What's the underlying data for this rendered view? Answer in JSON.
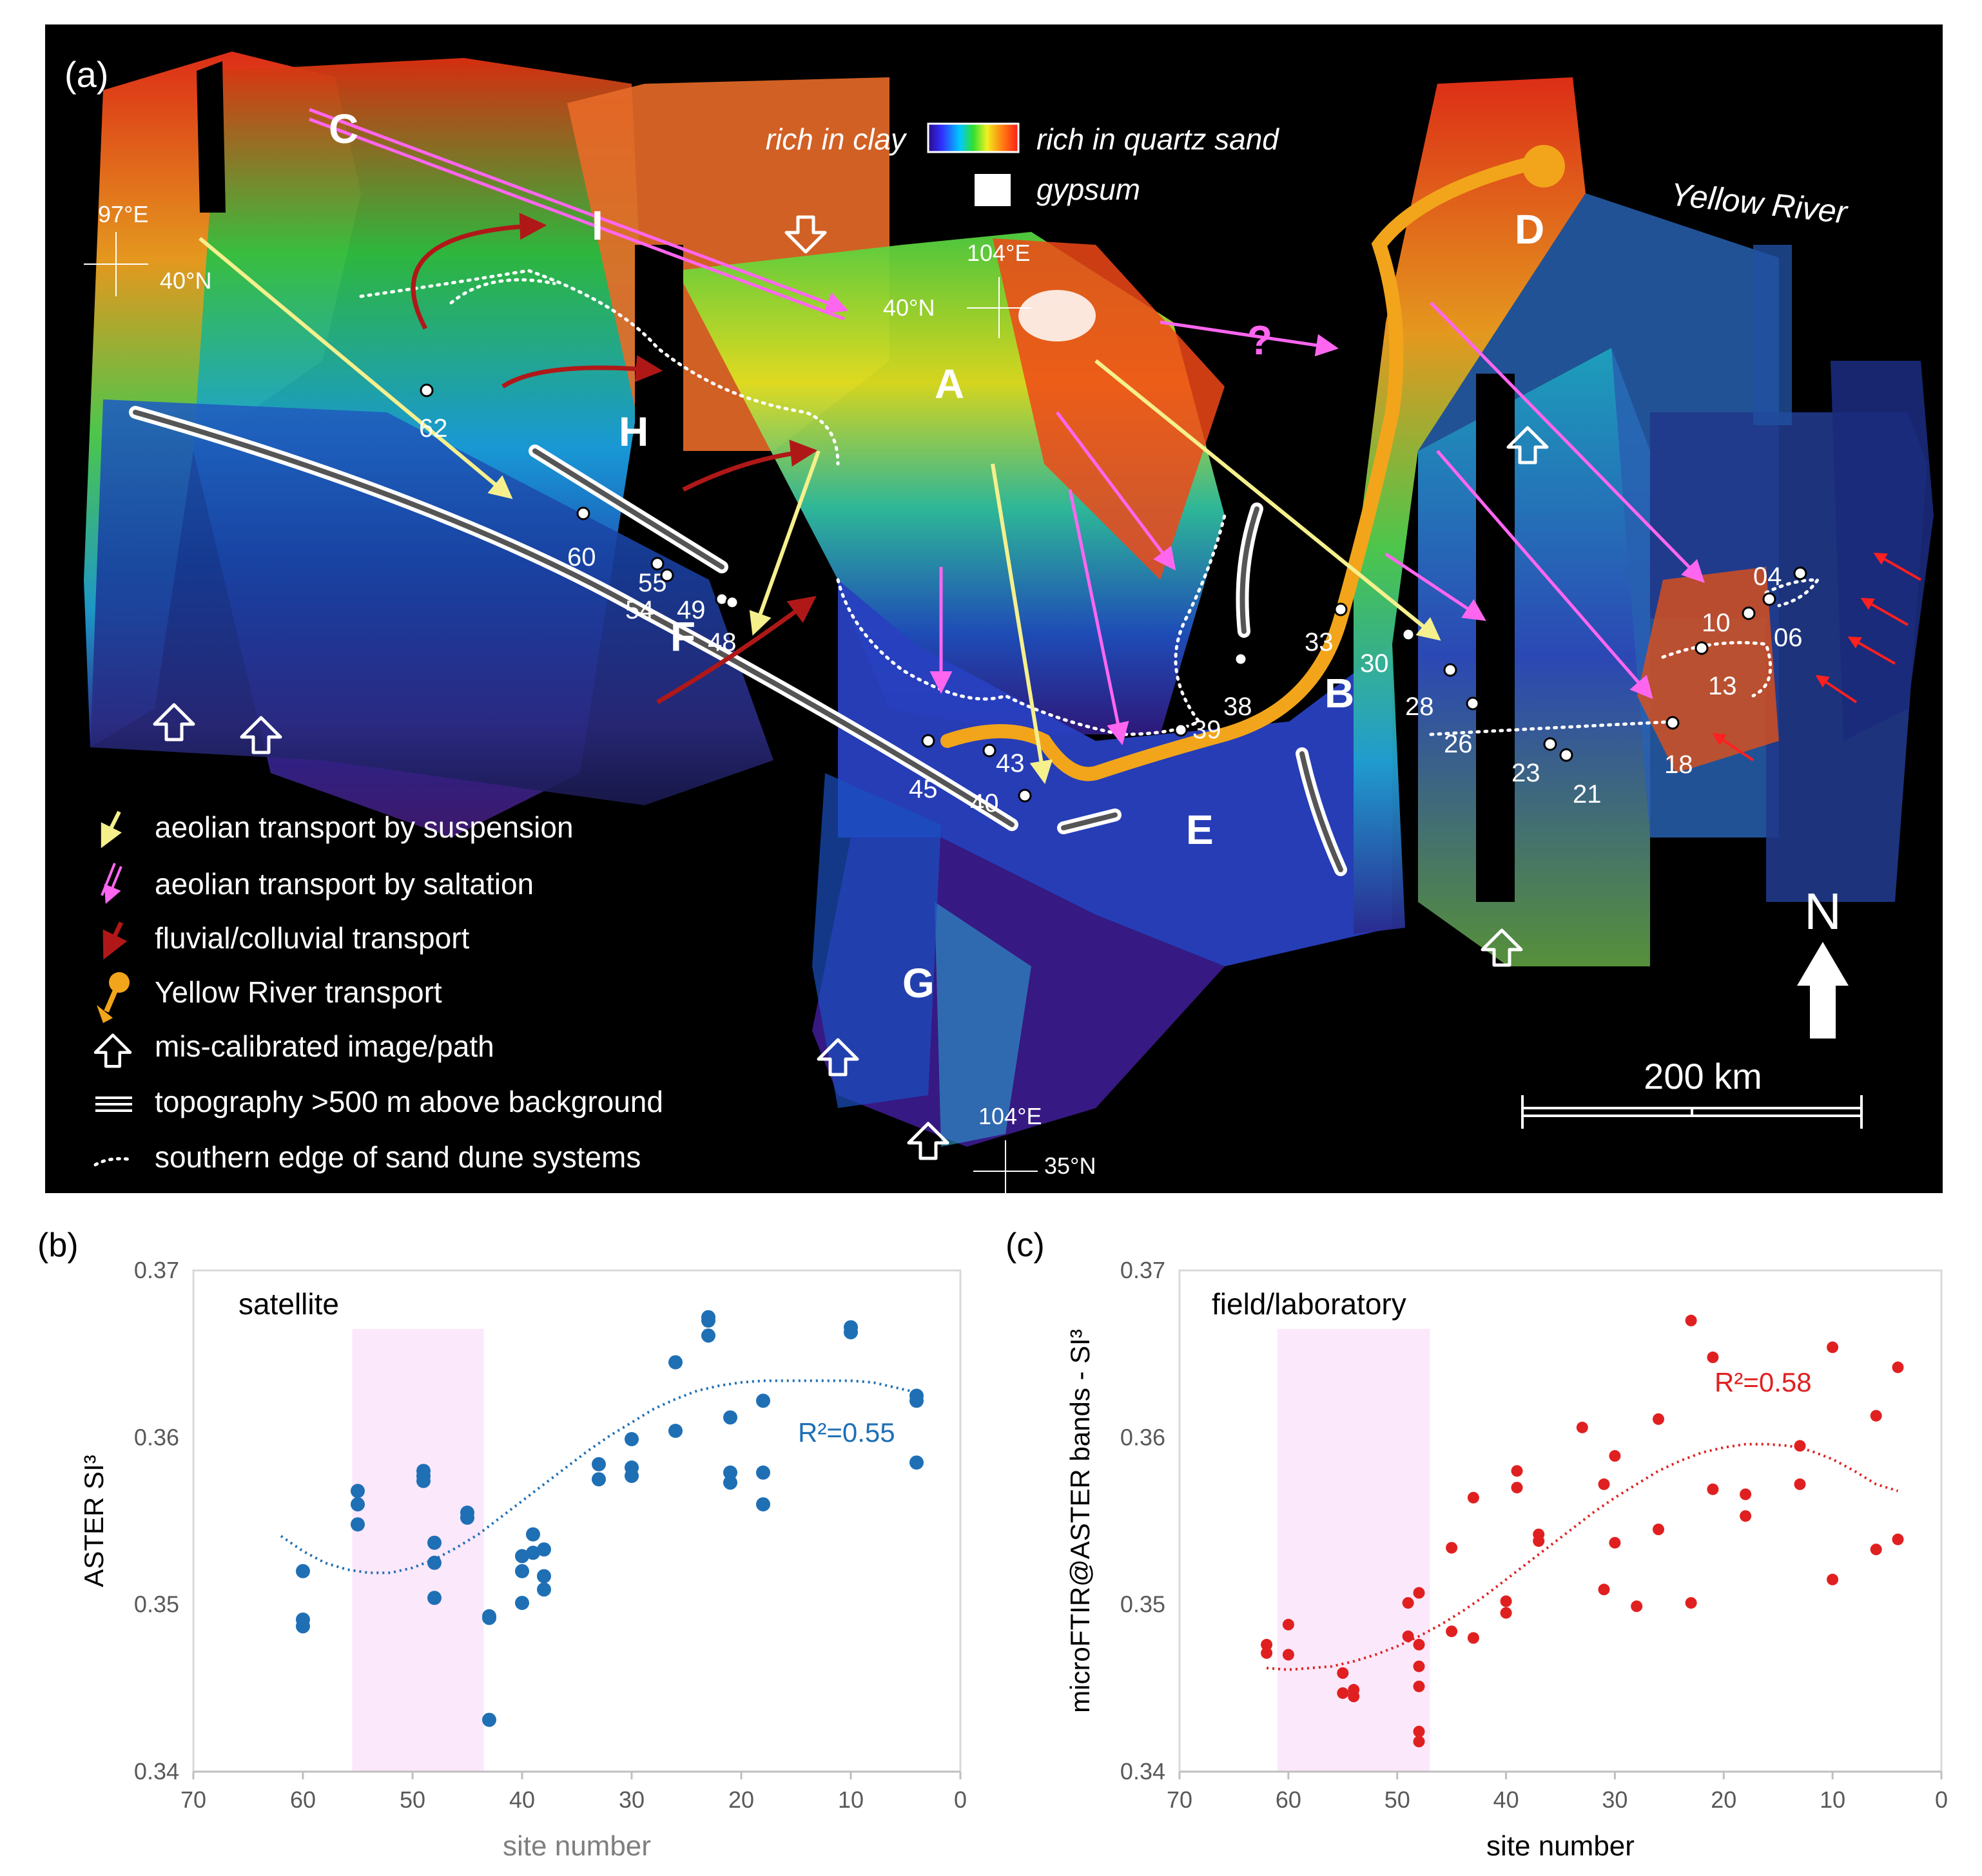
{
  "panel_a": {
    "label": "(a)",
    "colorbar": {
      "left": "rich in clay",
      "right": "rich in quartz sand",
      "gypsum": "gypsum"
    },
    "river_label": "Yellow River",
    "letters": [
      "A",
      "B",
      "C",
      "D",
      "E",
      "F",
      "G",
      "H",
      "I"
    ],
    "question_mark": "?",
    "coords": {
      "nw_lon": "97°E",
      "nw_lat": "40°N",
      "c_lon": "104°E",
      "c_lat": "40°N",
      "s_lon": "104°E",
      "s_lat": "35°N"
    },
    "north": "N",
    "scale": "200 km",
    "sites": [
      "62",
      "60",
      "55",
      "54",
      "49",
      "48",
      "45",
      "43",
      "40",
      "39",
      "38",
      "33",
      "30",
      "28",
      "26",
      "23",
      "21",
      "18",
      "13",
      "10",
      "06",
      "04"
    ],
    "legend": [
      {
        "icon": "yellow-arrow-icon",
        "label": "aeolian transport by suspension"
      },
      {
        "icon": "pink-double-arrow-icon",
        "label": "aeolian transport by saltation"
      },
      {
        "icon": "red-arrow-icon",
        "label": "fluvial/colluvial transport"
      },
      {
        "icon": "orange-pin-arrow-icon",
        "label": "Yellow River transport"
      },
      {
        "icon": "hollow-arrow-icon",
        "label": "mis-calibrated image/path"
      },
      {
        "icon": "triple-line-icon",
        "label": "topography >500 m above background"
      },
      {
        "icon": "dotted-line-icon",
        "label": "southern edge of sand dune systems"
      }
    ],
    "colors": {
      "suspension": "#f5f08c",
      "saltation": "#ff7ff0",
      "fluvial": "#b01818",
      "yellow_river": "#f2a51a"
    }
  },
  "chart_data": [
    {
      "type": "scatter",
      "panel_label": "(b)",
      "annotation": "satellite",
      "xlabel": "site number",
      "ylabel": "ASTER SI³",
      "xlim": [
        70,
        0
      ],
      "ylim": [
        0.34,
        0.37
      ],
      "xticks": [
        "70",
        "60",
        "50",
        "40",
        "30",
        "20",
        "10",
        "0"
      ],
      "yticks": [
        "0.34",
        "0.35",
        "0.36",
        "0.37"
      ],
      "highlight_band": [
        55.5,
        43.5
      ],
      "trend_label": "R²=0.55",
      "color": "#1f6fb5",
      "trend": [
        [
          62,
          0.3541
        ],
        [
          60,
          0.3532
        ],
        [
          58,
          0.3525
        ],
        [
          56,
          0.3521
        ],
        [
          54,
          0.3519
        ],
        [
          52,
          0.3519
        ],
        [
          50,
          0.3522
        ],
        [
          48,
          0.3527
        ],
        [
          46,
          0.3534
        ],
        [
          44,
          0.3542
        ],
        [
          42,
          0.3552
        ],
        [
          40,
          0.3562
        ],
        [
          38,
          0.3572
        ],
        [
          36,
          0.3582
        ],
        [
          34,
          0.3592
        ],
        [
          32,
          0.3601
        ],
        [
          30,
          0.3609
        ],
        [
          28,
          0.3617
        ],
        [
          26,
          0.3623
        ],
        [
          24,
          0.3628
        ],
        [
          22,
          0.3631
        ],
        [
          20,
          0.3633
        ],
        [
          18,
          0.3634
        ],
        [
          16,
          0.3634
        ],
        [
          14,
          0.3634
        ],
        [
          12,
          0.3634
        ],
        [
          10,
          0.3634
        ],
        [
          8,
          0.3633
        ],
        [
          6,
          0.363
        ],
        [
          4,
          0.3627
        ]
      ],
      "points": [
        [
          60,
          0.352
        ],
        [
          60,
          0.3491
        ],
        [
          60,
          0.3487
        ],
        [
          55,
          0.3568
        ],
        [
          55,
          0.356
        ],
        [
          55,
          0.3548
        ],
        [
          49,
          0.358
        ],
        [
          49,
          0.3577
        ],
        [
          49,
          0.3574
        ],
        [
          48,
          0.3537
        ],
        [
          48,
          0.3525
        ],
        [
          48,
          0.3504
        ],
        [
          45,
          0.3555
        ],
        [
          45,
          0.3552
        ],
        [
          43,
          0.3493
        ],
        [
          43,
          0.3492
        ],
        [
          43,
          0.3431
        ],
        [
          40,
          0.3529
        ],
        [
          40,
          0.352
        ],
        [
          40,
          0.3501
        ],
        [
          39,
          0.3542
        ],
        [
          39,
          0.3531
        ],
        [
          38,
          0.3533
        ],
        [
          38,
          0.3517
        ],
        [
          38,
          0.3509
        ],
        [
          33,
          0.3584
        ],
        [
          33,
          0.3575
        ],
        [
          30,
          0.3599
        ],
        [
          30,
          0.3582
        ],
        [
          30,
          0.3577
        ],
        [
          26,
          0.3645
        ],
        [
          26,
          0.3604
        ],
        [
          23,
          0.3672
        ],
        [
          23,
          0.367
        ],
        [
          23,
          0.3661
        ],
        [
          21,
          0.3612
        ],
        [
          21,
          0.3579
        ],
        [
          21,
          0.3573
        ],
        [
          18,
          0.3622
        ],
        [
          18,
          0.3579
        ],
        [
          18,
          0.356
        ],
        [
          10,
          0.3666
        ],
        [
          10,
          0.3663
        ],
        [
          4,
          0.3625
        ],
        [
          4,
          0.3622
        ],
        [
          4,
          0.3585
        ]
      ]
    },
    {
      "type": "scatter",
      "panel_label": "(c)",
      "annotation": "field/laboratory",
      "xlabel": "site number",
      "ylabel": "microFTIR@ASTER bands  - SI³",
      "xlim": [
        70,
        0
      ],
      "ylim": [
        0.34,
        0.37
      ],
      "xticks": [
        "70",
        "60",
        "50",
        "40",
        "30",
        "20",
        "10",
        "0"
      ],
      "yticks": [
        "0.34",
        "0.35",
        "0.36",
        "0.37"
      ],
      "highlight_band": [
        61,
        47
      ],
      "trend_label": "R²=0.58",
      "color": "#e02020",
      "trend": [
        [
          62,
          0.3462
        ],
        [
          60,
          0.3461
        ],
        [
          58,
          0.3462
        ],
        [
          56,
          0.3463
        ],
        [
          54,
          0.3466
        ],
        [
          52,
          0.347
        ],
        [
          50,
          0.3475
        ],
        [
          48,
          0.3481
        ],
        [
          46,
          0.3488
        ],
        [
          44,
          0.3496
        ],
        [
          42,
          0.3505
        ],
        [
          40,
          0.3515
        ],
        [
          38,
          0.3525
        ],
        [
          36,
          0.3535
        ],
        [
          34,
          0.3545
        ],
        [
          32,
          0.3555
        ],
        [
          30,
          0.3564
        ],
        [
          28,
          0.3572
        ],
        [
          26,
          0.358
        ],
        [
          24,
          0.3586
        ],
        [
          22,
          0.3591
        ],
        [
          20,
          0.3594
        ],
        [
          18,
          0.3596
        ],
        [
          16,
          0.3596
        ],
        [
          14,
          0.3595
        ],
        [
          12,
          0.3592
        ],
        [
          10,
          0.3587
        ],
        [
          8,
          0.358
        ],
        [
          6,
          0.3572
        ],
        [
          4,
          0.3568
        ]
      ],
      "points": [
        [
          62,
          0.3476
        ],
        [
          62,
          0.3471
        ],
        [
          60,
          0.3488
        ],
        [
          60,
          0.347
        ],
        [
          55,
          0.3459
        ],
        [
          55,
          0.3447
        ],
        [
          54,
          0.3449
        ],
        [
          54,
          0.3445
        ],
        [
          49,
          0.3501
        ],
        [
          49,
          0.3481
        ],
        [
          48,
          0.3507
        ],
        [
          48,
          0.3476
        ],
        [
          48,
          0.3463
        ],
        [
          48,
          0.3451
        ],
        [
          48,
          0.3424
        ],
        [
          48,
          0.3418
        ],
        [
          45,
          0.3534
        ],
        [
          45,
          0.3484
        ],
        [
          43,
          0.3564
        ],
        [
          43,
          0.348
        ],
        [
          40,
          0.3502
        ],
        [
          40,
          0.3495
        ],
        [
          39,
          0.358
        ],
        [
          39,
          0.357
        ],
        [
          37,
          0.3542
        ],
        [
          37,
          0.3538
        ],
        [
          33,
          0.3606
        ],
        [
          31,
          0.3572
        ],
        [
          31,
          0.3509
        ],
        [
          30,
          0.3589
        ],
        [
          30,
          0.3537
        ],
        [
          28,
          0.3499
        ],
        [
          26,
          0.3611
        ],
        [
          26,
          0.3545
        ],
        [
          23,
          0.367
        ],
        [
          23,
          0.3501
        ],
        [
          21,
          0.3648
        ],
        [
          21,
          0.3569
        ],
        [
          18,
          0.3566
        ],
        [
          18,
          0.3553
        ],
        [
          13,
          0.3595
        ],
        [
          13,
          0.3572
        ],
        [
          10,
          0.3654
        ],
        [
          10,
          0.3515
        ],
        [
          6,
          0.3613
        ],
        [
          6,
          0.3533
        ],
        [
          4,
          0.3642
        ],
        [
          4,
          0.3539
        ]
      ]
    }
  ]
}
